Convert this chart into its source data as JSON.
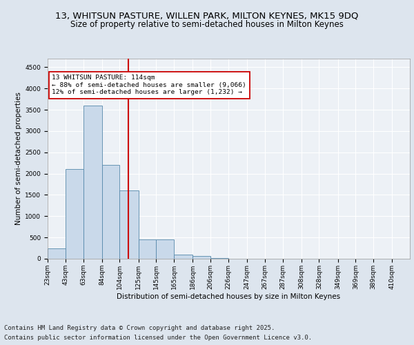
{
  "title1": "13, WHITSUN PASTURE, WILLEN PARK, MILTON KEYNES, MK15 9DQ",
  "title2": "Size of property relative to semi-detached houses in Milton Keynes",
  "xlabel": "Distribution of semi-detached houses by size in Milton Keynes",
  "ylabel": "Number of semi-detached properties",
  "bins": [
    23,
    43,
    63,
    84,
    104,
    125,
    145,
    165,
    186,
    206,
    226,
    247,
    267,
    287,
    308,
    328,
    349,
    369,
    389,
    410,
    430
  ],
  "counts": [
    250,
    2100,
    3600,
    2200,
    1600,
    450,
    450,
    100,
    65,
    10,
    5,
    2,
    1,
    1,
    0,
    0,
    0,
    0,
    0,
    0
  ],
  "bar_color": "#c9d9ea",
  "bar_edge_color": "#5588aa",
  "property_size": 114,
  "vline_color": "#cc0000",
  "annotation_line1": "13 WHITSUN PASTURE: 114sqm",
  "annotation_line2": "← 88% of semi-detached houses are smaller (9,066)",
  "annotation_line3": "12% of semi-detached houses are larger (1,232) →",
  "annotation_box_color": "#ffffff",
  "annotation_box_edge": "#cc0000",
  "ylim": [
    0,
    4700
  ],
  "yticks": [
    0,
    500,
    1000,
    1500,
    2000,
    2500,
    3000,
    3500,
    4000,
    4500
  ],
  "bg_color": "#dde5ee",
  "plot_bg_color": "#edf1f6",
  "footer1": "Contains HM Land Registry data © Crown copyright and database right 2025.",
  "footer2": "Contains public sector information licensed under the Open Government Licence v3.0.",
  "title_fontsize": 9.5,
  "subtitle_fontsize": 8.5,
  "footer_fontsize": 6.5,
  "axis_label_fontsize": 7.5,
  "tick_fontsize": 6.5,
  "ylabel_fontsize": 7.5
}
